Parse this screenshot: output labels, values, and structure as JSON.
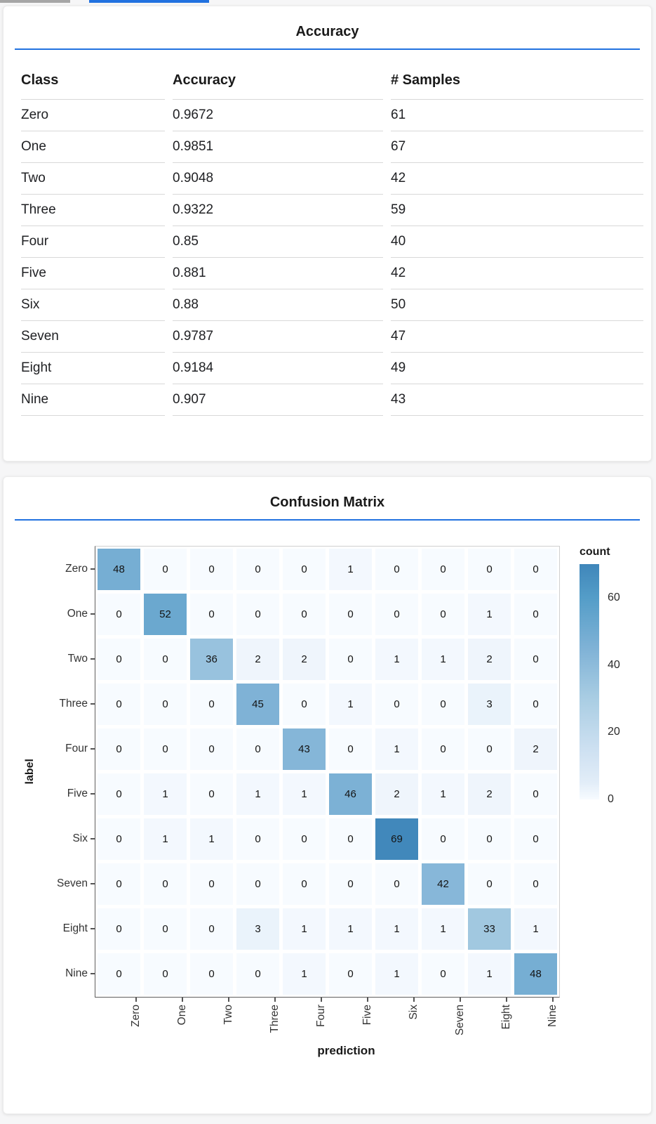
{
  "colors": {
    "accent_blue": "#2272e0",
    "tab_fragment_gray": "#a6a6a6",
    "heatmap_min": "#f7fbff",
    "heatmap_max": "#3f86ba"
  },
  "chart_data": [
    {
      "type": "table",
      "title": "Accuracy",
      "columns": [
        "Class",
        "Accuracy",
        "# Samples"
      ],
      "rows": [
        [
          "Zero",
          "0.9672",
          "61"
        ],
        [
          "One",
          "0.9851",
          "67"
        ],
        [
          "Two",
          "0.9048",
          "42"
        ],
        [
          "Three",
          "0.9322",
          "59"
        ],
        [
          "Four",
          "0.85",
          "40"
        ],
        [
          "Five",
          "0.881",
          "42"
        ],
        [
          "Six",
          "0.88",
          "50"
        ],
        [
          "Seven",
          "0.9787",
          "47"
        ],
        [
          "Eight",
          "0.9184",
          "49"
        ],
        [
          "Nine",
          "0.907",
          "43"
        ]
      ]
    },
    {
      "type": "heatmap",
      "title": "Confusion Matrix",
      "xlabel": "prediction",
      "ylabel": "label",
      "x_categories": [
        "Zero",
        "One",
        "Two",
        "Three",
        "Four",
        "Five",
        "Six",
        "Seven",
        "Eight",
        "Nine"
      ],
      "y_categories": [
        "Zero",
        "One",
        "Two",
        "Three",
        "Four",
        "Five",
        "Six",
        "Seven",
        "Eight",
        "Nine"
      ],
      "values": [
        [
          48,
          0,
          0,
          0,
          0,
          1,
          0,
          0,
          0,
          0
        ],
        [
          0,
          52,
          0,
          0,
          0,
          0,
          0,
          0,
          1,
          0
        ],
        [
          0,
          0,
          36,
          2,
          2,
          0,
          1,
          1,
          2,
          0
        ],
        [
          0,
          0,
          0,
          45,
          0,
          1,
          0,
          0,
          3,
          0
        ],
        [
          0,
          0,
          0,
          0,
          43,
          0,
          1,
          0,
          0,
          2
        ],
        [
          0,
          1,
          0,
          1,
          1,
          46,
          2,
          1,
          2,
          0
        ],
        [
          0,
          1,
          1,
          0,
          0,
          0,
          69,
          0,
          0,
          0
        ],
        [
          0,
          0,
          0,
          0,
          0,
          0,
          0,
          42,
          0,
          0
        ],
        [
          0,
          0,
          0,
          3,
          1,
          1,
          1,
          1,
          33,
          1
        ],
        [
          0,
          0,
          0,
          0,
          1,
          0,
          1,
          0,
          1,
          48
        ]
      ],
      "legend_title": "count",
      "legend_ticks": [
        0,
        20,
        40,
        60
      ],
      "color_domain": [
        0,
        70
      ],
      "color_stops": [
        [
          0,
          "#f7fbff"
        ],
        [
          5,
          "#e2edf8"
        ],
        [
          15,
          "#cde0f1"
        ],
        [
          30,
          "#a9cde3"
        ],
        [
          45,
          "#7fb2d6"
        ],
        [
          60,
          "#549dc8"
        ],
        [
          70,
          "#3f86ba"
        ]
      ],
      "grid": false,
      "legend_position": "right"
    }
  ]
}
